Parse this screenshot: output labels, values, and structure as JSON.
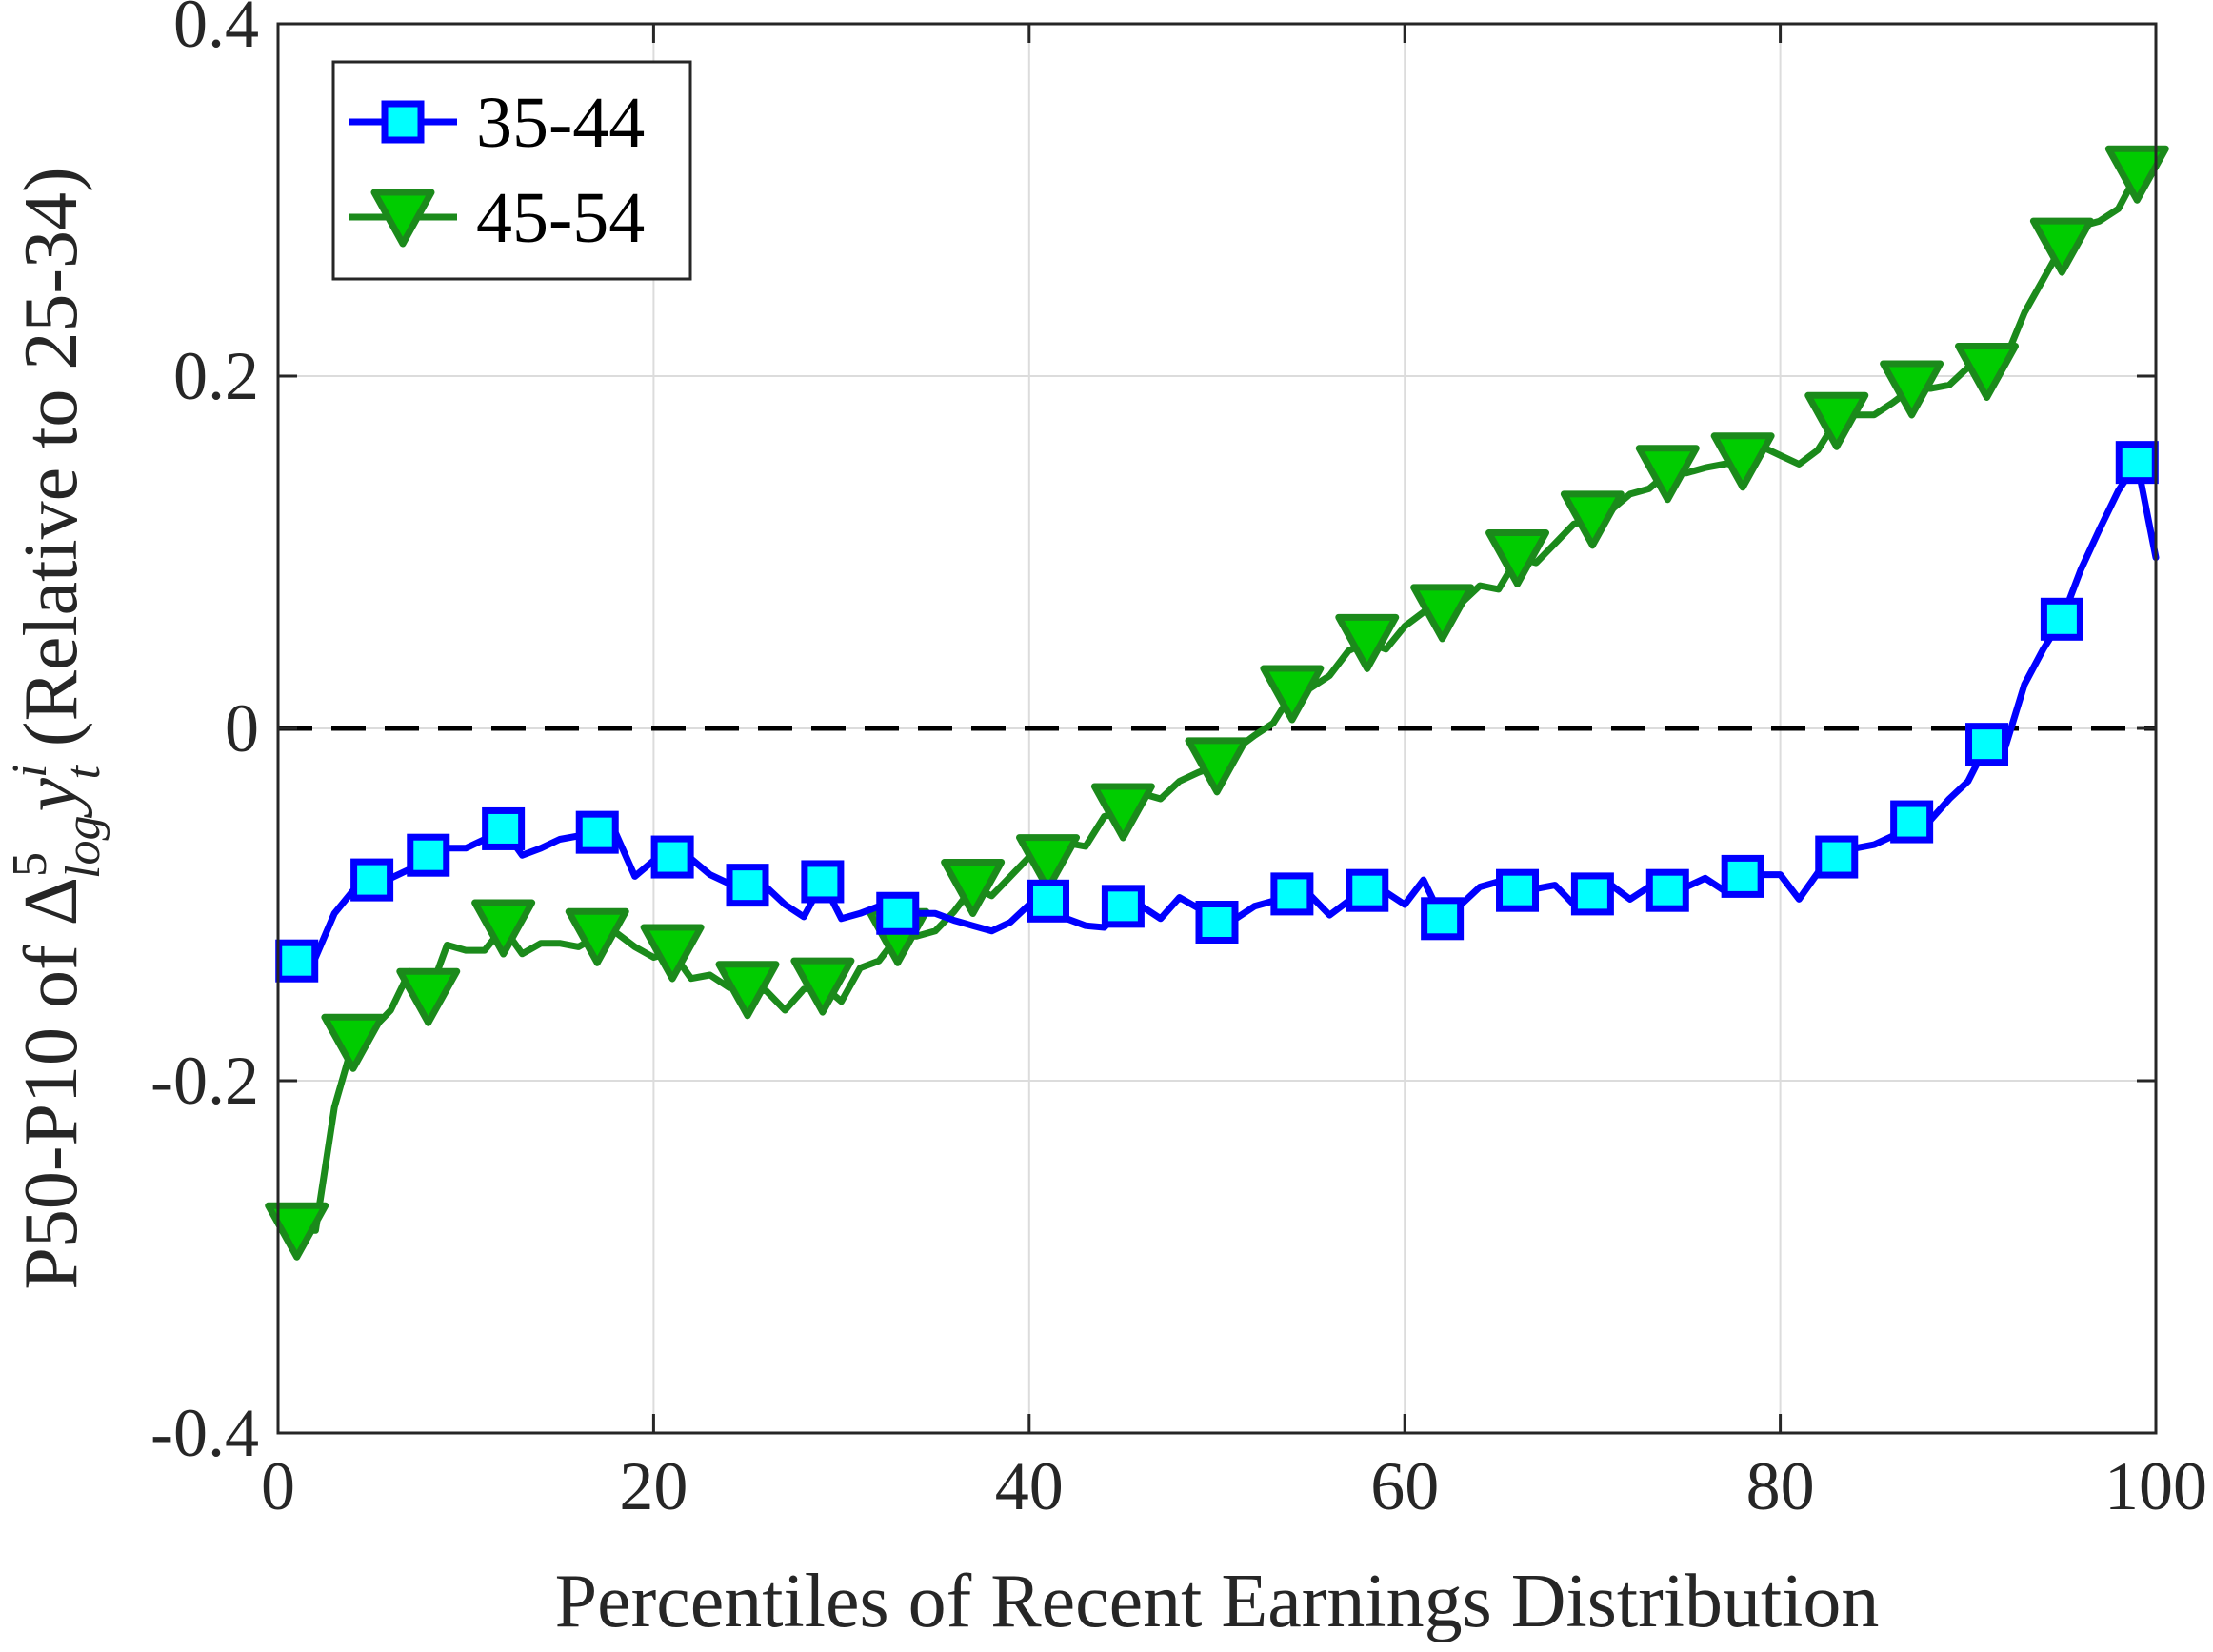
{
  "chart_data": {
    "type": "line",
    "xlabel": "Percentiles of Recent Earnings Distribution",
    "ylabel": {
      "prefix": "P50-P10 of Δ",
      "sup": "5",
      "sub": "log",
      "var": "y",
      "var_sup": "i",
      "var_sub": "t",
      "suffix": " (Relative to 25-34)"
    },
    "xlim": [
      0,
      100
    ],
    "ylim": [
      -0.4,
      0.4
    ],
    "x_ticks": [
      0,
      20,
      40,
      60,
      80,
      100
    ],
    "x_tick_labels": [
      "0",
      "20",
      "40",
      "60",
      "80",
      "100"
    ],
    "y_ticks": [
      -0.4,
      -0.2,
      0,
      0.2,
      0.4
    ],
    "y_tick_labels": [
      "-0.4",
      "-0.2",
      "0",
      "0.2",
      "0.4"
    ],
    "grid": true,
    "legend_position": "top-left",
    "reference_line": {
      "y": 0,
      "style": "dashed",
      "color": "#000000"
    },
    "series": [
      {
        "name": "35-44",
        "color": "#0000ff",
        "marker": "square",
        "marker_fill": "#00ffff",
        "x": [
          1,
          2,
          3,
          4,
          5,
          6,
          7,
          8,
          9,
          10,
          11,
          12,
          13,
          14,
          15,
          16,
          17,
          18,
          19,
          20,
          21,
          22,
          23,
          24,
          25,
          26,
          27,
          28,
          29,
          30,
          31,
          32,
          33,
          34,
          35,
          36,
          37,
          38,
          39,
          40,
          41,
          42,
          43,
          44,
          45,
          46,
          47,
          48,
          49,
          50,
          51,
          52,
          53,
          54,
          55,
          56,
          57,
          58,
          59,
          60,
          61,
          62,
          63,
          64,
          65,
          66,
          67,
          68,
          69,
          70,
          71,
          72,
          73,
          74,
          75,
          76,
          77,
          78,
          79,
          80,
          81,
          82,
          83,
          84,
          85,
          86,
          87,
          88,
          89,
          90,
          91,
          92,
          93,
          94,
          95,
          96,
          97,
          98,
          99,
          100
        ],
        "y": [
          -0.132,
          -0.13,
          -0.105,
          -0.092,
          -0.086,
          -0.085,
          -0.08,
          -0.072,
          -0.068,
          -0.068,
          -0.063,
          -0.057,
          -0.072,
          -0.068,
          -0.063,
          -0.061,
          -0.059,
          -0.06,
          -0.084,
          -0.075,
          -0.073,
          -0.074,
          -0.083,
          -0.088,
          -0.089,
          -0.09,
          -0.1,
          -0.107,
          -0.087,
          -0.108,
          -0.105,
          -0.101,
          -0.105,
          -0.105,
          -0.105,
          -0.109,
          -0.112,
          -0.115,
          -0.11,
          -0.1,
          -0.098,
          -0.108,
          -0.112,
          -0.113,
          -0.101,
          -0.101,
          -0.108,
          -0.096,
          -0.102,
          -0.11,
          -0.108,
          -0.101,
          -0.098,
          -0.094,
          -0.095,
          -0.106,
          -0.098,
          -0.092,
          -0.093,
          -0.1,
          -0.086,
          -0.108,
          -0.1,
          -0.09,
          -0.087,
          -0.092,
          -0.091,
          -0.089,
          -0.1,
          -0.094,
          -0.089,
          -0.097,
          -0.09,
          -0.092,
          -0.09,
          -0.085,
          -0.092,
          -0.084,
          -0.083,
          -0.083,
          -0.097,
          -0.082,
          -0.073,
          -0.068,
          -0.066,
          -0.061,
          -0.053,
          -0.052,
          -0.04,
          -0.03,
          -0.009,
          -0.01,
          0.025,
          0.045,
          0.062,
          0.09,
          0.113,
          0.135,
          0.151,
          0.097
        ]
      },
      {
        "name": "45-54",
        "color": "#1b8a1b",
        "marker": "triangle-down",
        "marker_fill": "#00cc00",
        "x": [
          1,
          2,
          3,
          4,
          5,
          6,
          7,
          8,
          9,
          10,
          11,
          12,
          13,
          14,
          15,
          16,
          17,
          18,
          19,
          20,
          21,
          22,
          23,
          24,
          25,
          26,
          27,
          28,
          29,
          30,
          31,
          32,
          33,
          34,
          35,
          36,
          37,
          38,
          39,
          40,
          41,
          42,
          43,
          44,
          45,
          46,
          47,
          48,
          49,
          50,
          51,
          52,
          53,
          54,
          55,
          56,
          57,
          58,
          59,
          60,
          61,
          62,
          63,
          64,
          65,
          66,
          67,
          68,
          69,
          70,
          71,
          72,
          73,
          74,
          75,
          76,
          77,
          78,
          79,
          80,
          81,
          82,
          83,
          84,
          85,
          86,
          87,
          88,
          89,
          90,
          91,
          92,
          93,
          94,
          95,
          96,
          97,
          98,
          99,
          100
        ],
        "y": [
          -0.285,
          -0.285,
          -0.215,
          -0.178,
          -0.171,
          -0.16,
          -0.138,
          -0.152,
          -0.123,
          -0.126,
          -0.126,
          -0.113,
          -0.128,
          -0.122,
          -0.122,
          -0.124,
          -0.118,
          -0.116,
          -0.124,
          -0.13,
          -0.127,
          -0.142,
          -0.14,
          -0.147,
          -0.148,
          -0.149,
          -0.16,
          -0.148,
          -0.146,
          -0.155,
          -0.136,
          -0.132,
          -0.118,
          -0.118,
          -0.115,
          -0.104,
          -0.09,
          -0.095,
          -0.084,
          -0.073,
          -0.076,
          -0.065,
          -0.067,
          -0.05,
          -0.047,
          -0.037,
          -0.04,
          -0.03,
          -0.025,
          -0.021,
          -0.012,
          -0.004,
          0.003,
          0.02,
          0.023,
          0.03,
          0.044,
          0.049,
          0.045,
          0.058,
          0.066,
          0.066,
          0.071,
          0.081,
          0.079,
          0.097,
          0.094,
          0.105,
          0.116,
          0.119,
          0.124,
          0.133,
          0.136,
          0.145,
          0.145,
          0.148,
          0.15,
          0.152,
          0.16,
          0.155,
          0.15,
          0.158,
          0.175,
          0.178,
          0.178,
          0.185,
          0.193,
          0.193,
          0.195,
          0.205,
          0.203,
          0.21,
          0.236,
          0.255,
          0.274,
          0.285,
          0.288,
          0.295,
          0.315,
          0.327
        ]
      }
    ],
    "marker_x": {
      "35-44": [
        1,
        5,
        8,
        12,
        17,
        21,
        25,
        29,
        33,
        41,
        45,
        50,
        54,
        58,
        62,
        66,
        70,
        74,
        78,
        83,
        87,
        91,
        95,
        99
      ],
      "45-54": [
        1,
        4,
        8,
        12,
        17,
        21,
        25,
        29,
        33,
        37,
        41,
        45,
        50,
        54,
        58,
        62,
        66,
        70,
        74,
        78,
        83,
        87,
        91,
        95,
        99
      ]
    }
  }
}
